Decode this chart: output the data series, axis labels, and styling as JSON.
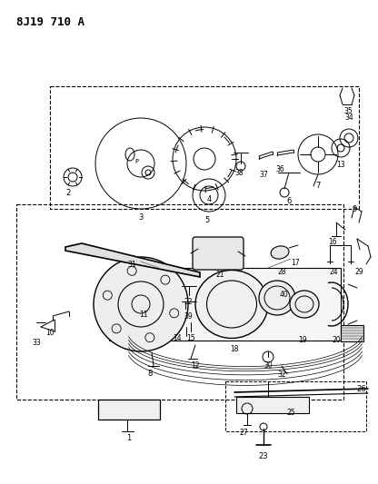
{
  "title": "8J19 710 A",
  "bg_color": "#ffffff",
  "line_color": "#000000",
  "fig_w": 4.16,
  "fig_h": 5.33,
  "dpi": 100
}
